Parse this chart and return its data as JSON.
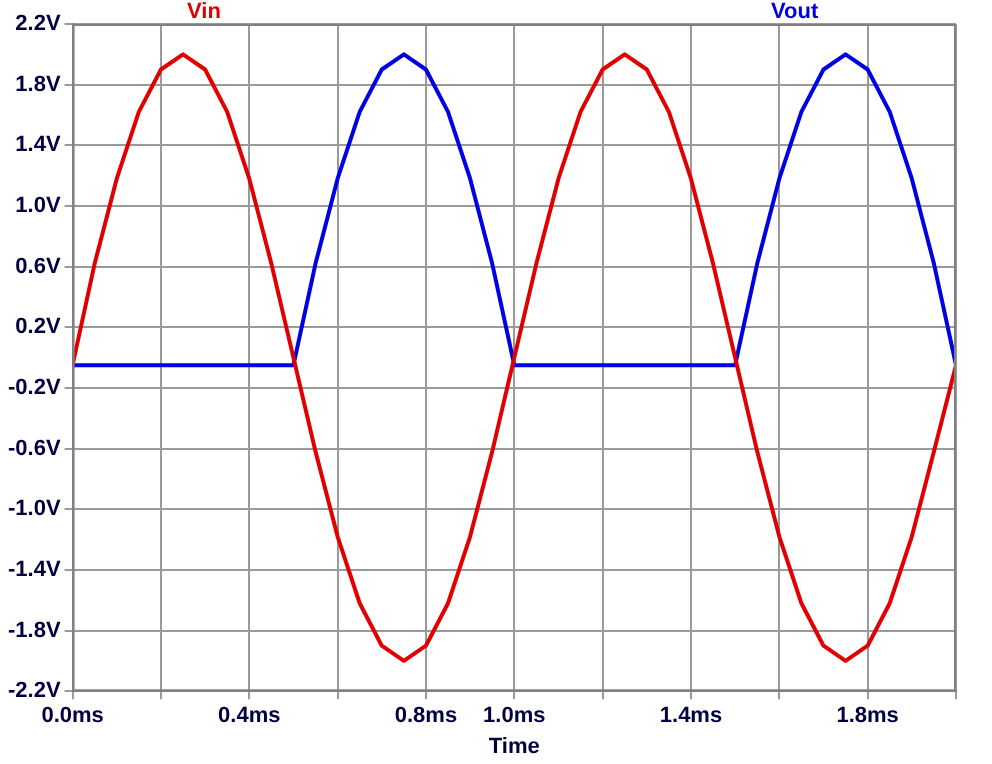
{
  "chart_data": {
    "type": "line",
    "xlabel": "Time",
    "legend": "top",
    "grid": true,
    "marker": "none",
    "line_style": "solid",
    "xlim": [
      0,
      2
    ],
    "ylim": [
      -2.2,
      2.2
    ],
    "xticks": [
      {
        "value": 0,
        "label": "0.0ms"
      },
      {
        "value": 0.2,
        "label": null
      },
      {
        "value": 0.4,
        "label": "0.4ms"
      },
      {
        "value": 0.6,
        "label": null
      },
      {
        "value": 0.8,
        "label": "0.8ms"
      },
      {
        "value": 1.0,
        "label": "1.0ms"
      },
      {
        "value": 1.2,
        "label": null
      },
      {
        "value": 1.4,
        "label": "1.4ms"
      },
      {
        "value": 1.6,
        "label": null
      },
      {
        "value": 1.8,
        "label": "1.8ms"
      },
      {
        "value": 2.0,
        "label": null
      }
    ],
    "yticks": [
      {
        "value": -2.2,
        "label": "-2.2V"
      },
      {
        "value": -1.8,
        "label": "-1.8V"
      },
      {
        "value": -1.4,
        "label": "-1.4V"
      },
      {
        "value": -1.0,
        "label": "-1.0V"
      },
      {
        "value": -0.6,
        "label": "-0.6V"
      },
      {
        "value": -0.2,
        "label": "-0.2V"
      },
      {
        "value": 0.2,
        "label": "0.2V"
      },
      {
        "value": 0.6,
        "label": "0.6V"
      },
      {
        "value": 1.0,
        "label": "1.0V"
      },
      {
        "value": 1.4,
        "label": "1.4V"
      },
      {
        "value": 1.8,
        "label": "1.8V"
      },
      {
        "value": 2.2,
        "label": "2.2V"
      }
    ],
    "x": [
      0,
      0.05,
      0.1,
      0.15,
      0.2,
      0.25,
      0.3,
      0.35,
      0.4,
      0.45,
      0.5,
      0.55,
      0.6,
      0.65,
      0.7,
      0.75,
      0.8,
      0.85,
      0.9,
      0.95,
      1.0,
      1.05,
      1.1,
      1.15,
      1.2,
      1.25,
      1.3,
      1.35,
      1.4,
      1.45,
      1.5,
      1.55,
      1.6,
      1.65,
      1.7,
      1.75,
      1.8,
      1.85,
      1.9,
      1.95,
      2.0
    ],
    "series": [
      {
        "name": "Vin",
        "color": "#e00000",
        "values": [
          -0.05,
          0.62,
          1.18,
          1.62,
          1.9,
          2.0,
          1.9,
          1.62,
          1.18,
          0.62,
          0,
          -0.62,
          -1.18,
          -1.62,
          -1.9,
          -2.0,
          -1.9,
          -1.62,
          -1.18,
          -0.62,
          0,
          0.62,
          1.18,
          1.62,
          1.9,
          2.0,
          1.9,
          1.62,
          1.18,
          0.62,
          0,
          -0.62,
          -1.18,
          -1.62,
          -1.9,
          -2.0,
          -1.9,
          -1.62,
          -1.18,
          -0.62,
          -0.05
        ]
      },
      {
        "name": "Vout",
        "color": "#0000e0",
        "values": [
          -0.05,
          -0.05,
          -0.05,
          -0.05,
          -0.05,
          -0.05,
          -0.05,
          -0.05,
          -0.05,
          -0.05,
          -0.05,
          0.62,
          1.18,
          1.62,
          1.9,
          2.0,
          1.9,
          1.62,
          1.18,
          0.62,
          -0.05,
          -0.05,
          -0.05,
          -0.05,
          -0.05,
          -0.05,
          -0.05,
          -0.05,
          -0.05,
          -0.05,
          -0.05,
          0.62,
          1.18,
          1.62,
          1.9,
          2.0,
          1.9,
          1.62,
          1.18,
          0.62,
          -0.05
        ]
      }
    ]
  }
}
